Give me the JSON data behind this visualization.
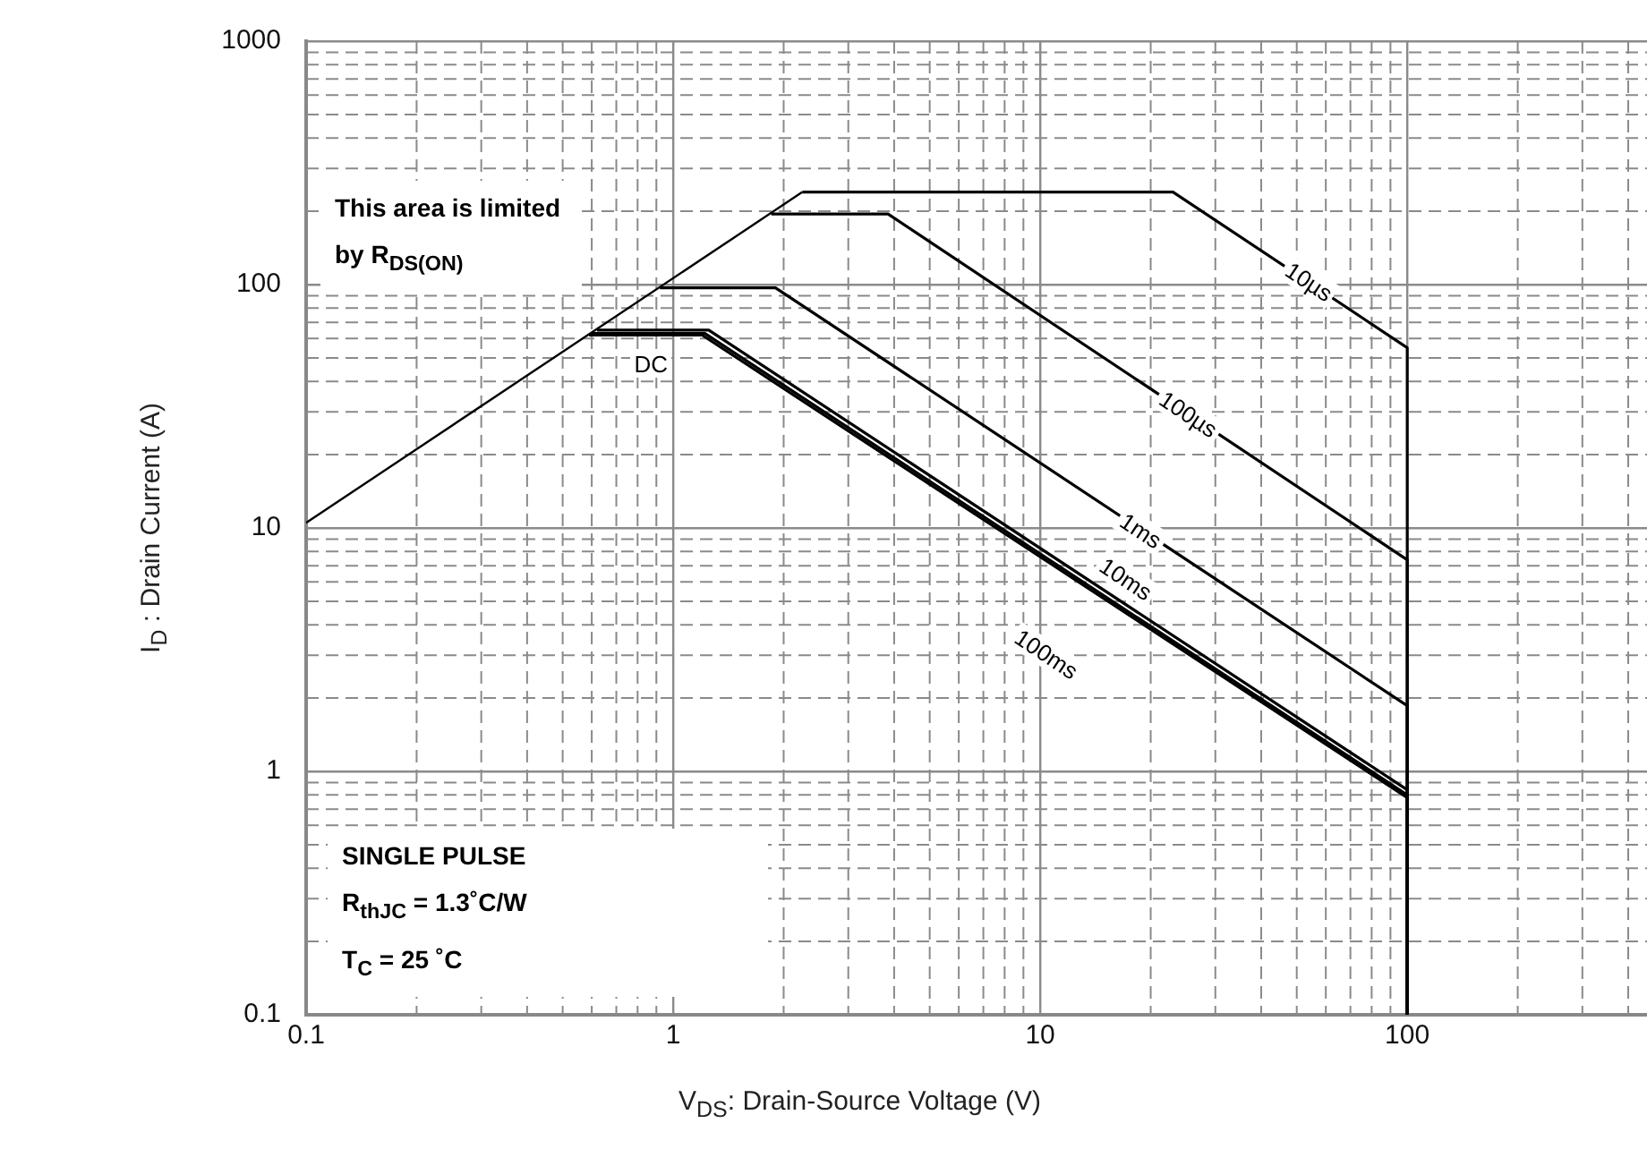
{
  "chart_data": {
    "type": "line",
    "xlabel": "V$_{DS}$: Drain-Source Voltage (V)",
    "ylabel": "I$_{D}$ : Drain Current (A)",
    "log": "xy",
    "xlim": [
      0.1,
      450
    ],
    "ylim": [
      0.1,
      1000
    ],
    "xticks": [
      0.1,
      1,
      10,
      100
    ],
    "yticks": [
      0.1,
      1,
      10,
      100,
      1000
    ],
    "grid": true,
    "legend": false,
    "marker": "none",
    "line_style": "solid",
    "series": [
      {
        "color": "#000000",
        "x": [
          0.1,
          2.25
        ],
        "values": [
          10.5,
          240
        ]
      },
      {
        "name": "10µs",
        "color": "#000000",
        "x": [
          2.25,
          23,
          100,
          100
        ],
        "values": [
          240,
          240,
          55,
          0.1
        ]
      },
      {
        "name": "100µs",
        "color": "#000000",
        "x": [
          1.85,
          3.85,
          100,
          100
        ],
        "values": [
          195,
          195,
          7.4,
          0.1
        ]
      },
      {
        "name": "1ms",
        "color": "#000000",
        "x": [
          0.92,
          1.9,
          100,
          100
        ],
        "values": [
          97,
          97,
          1.86,
          0.1
        ]
      },
      {
        "name": "10ms",
        "color": "#000000",
        "x": [
          0.62,
          1.25,
          100,
          100
        ],
        "values": [
          65,
          65,
          0.84,
          0.1
        ]
      },
      {
        "name": "100ms",
        "color": "#000000",
        "x": [
          0.6,
          1.22,
          100,
          100
        ],
        "values": [
          63,
          63,
          0.8,
          0.1
        ]
      },
      {
        "name": "DC",
        "color": "#000000",
        "x": [
          0.59,
          1.2,
          100,
          100
        ],
        "values": [
          62,
          62,
          0.78,
          0.1
        ]
      }
    ],
    "annotations": [
      "This area is limited by R$_{DS(ON)}$",
      "SINGLE PULSE",
      "R$_{thJC}$ = 1.3˚C/W",
      "T$_{C}$ = 25 ˚C"
    ]
  }
}
